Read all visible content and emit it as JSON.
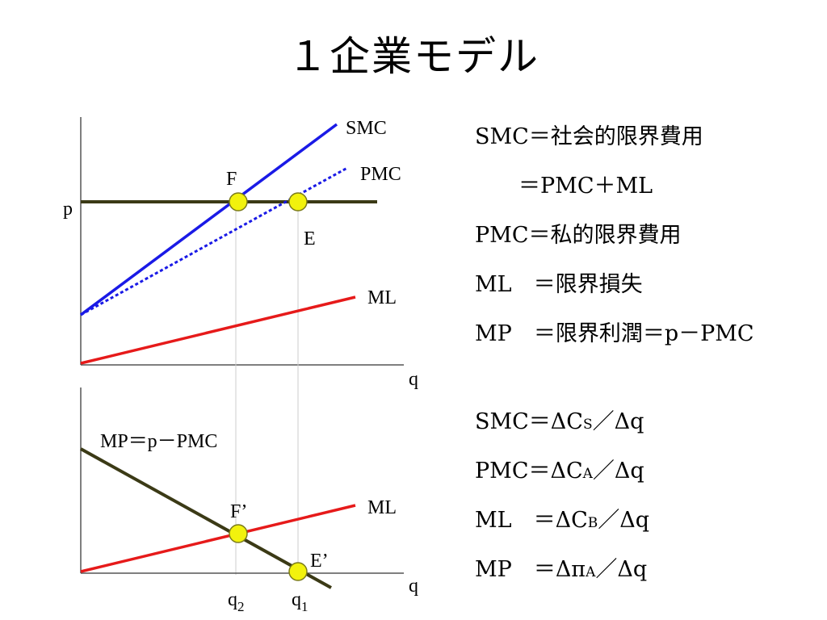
{
  "title": "１企業モデル",
  "colors": {
    "smc": "#1a1ae6",
    "pmc": "#1a1ae6",
    "ml": "#e61a1a",
    "price": "#3b3a16",
    "mp": "#3b3a16",
    "point_fill": "#f2f20d",
    "point_stroke": "#7a7a1a",
    "axis": "#555555",
    "guide": "#cccccc"
  },
  "top_graph": {
    "curve_labels": {
      "smc": "SMC",
      "pmc": "PMC",
      "ml": "ML"
    },
    "price_label": "p",
    "x_axis_label": "q",
    "points": {
      "f": "F",
      "e": "E"
    }
  },
  "bottom_graph": {
    "mp_label": "MP＝p－PMC",
    "ml_label": "ML",
    "x_axis_label": "q",
    "points": {
      "f": "F’",
      "e": "E’"
    },
    "q2": {
      "base": "q",
      "sub": "2"
    },
    "q1": {
      "base": "q",
      "sub": "1"
    }
  },
  "definitions": [
    {
      "text": "SMC＝社会的限界費用"
    },
    {
      "text": "　　＝PMC＋ML"
    },
    {
      "text": "PMC＝私的限界費用"
    },
    {
      "text": "ML　＝限界損失"
    },
    {
      "text": "MP　＝限界利潤＝p－PMC"
    }
  ],
  "formulas": [
    {
      "lhs": "SMC＝ΔC",
      "sub": "S",
      "rhs": "／Δq"
    },
    {
      "lhs": "PMC＝ΔC",
      "sub": "A",
      "rhs": "／Δq"
    },
    {
      "lhs": "ML　＝ΔC",
      "sub": "B",
      "rhs": "／Δq"
    },
    {
      "lhs": "MP　＝Δπ",
      "sub": "A",
      "rhs": "／Δq"
    }
  ]
}
